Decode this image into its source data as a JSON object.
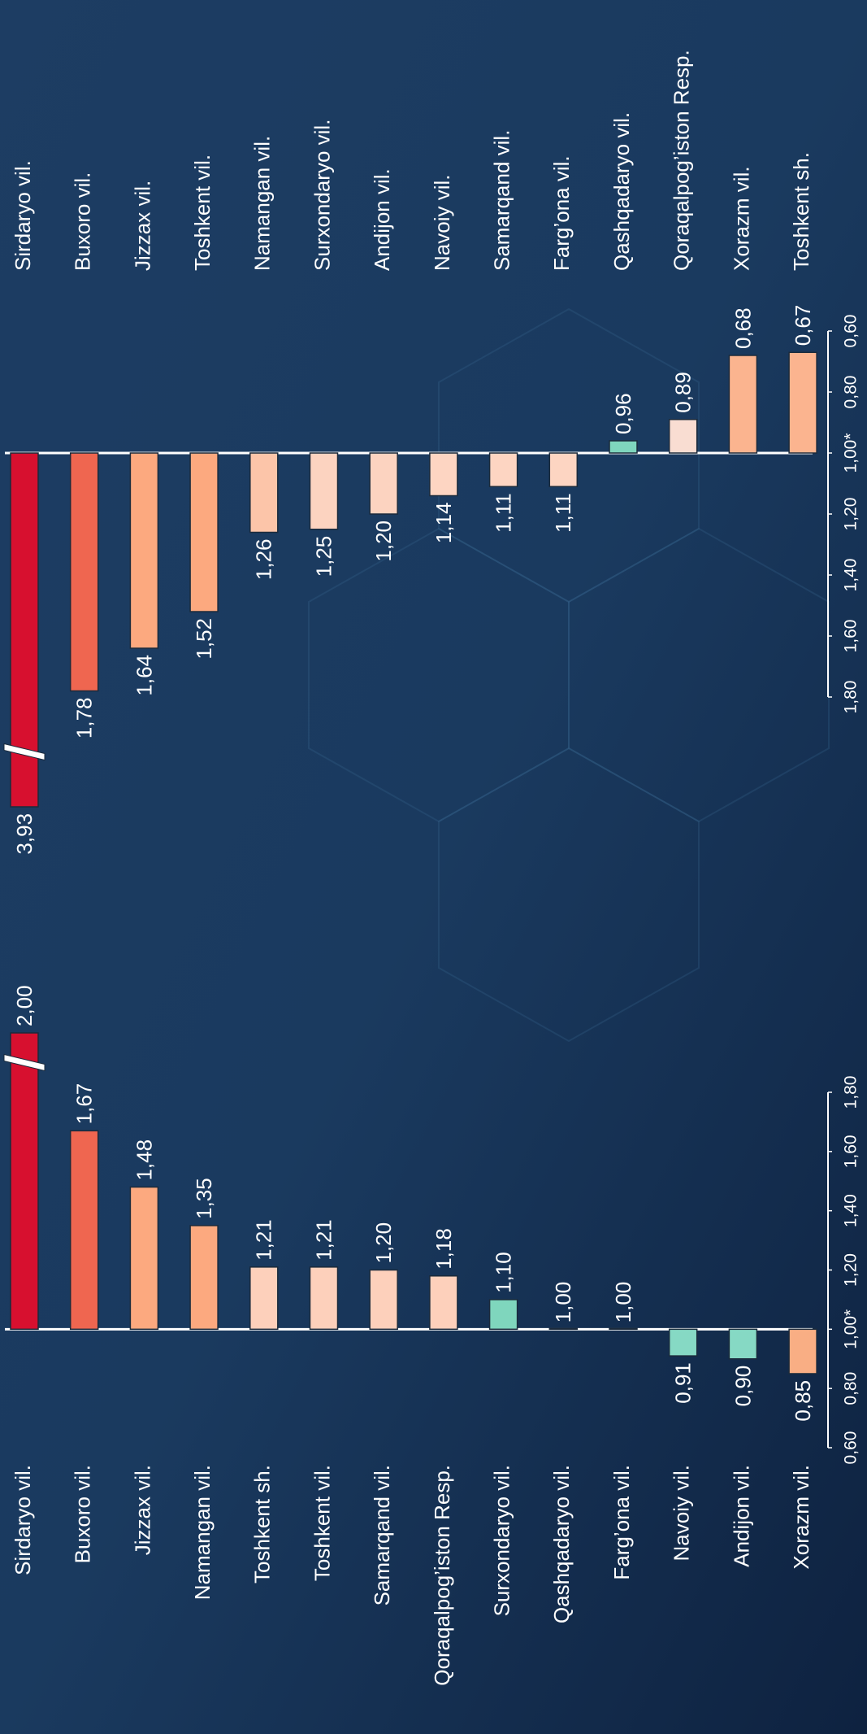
{
  "chart_data": [
    {
      "type": "bar",
      "categories": [
        "Sirdaryo vil.",
        "Buxoro vil.",
        "Jizzax vil.",
        "Namangan vil.",
        "Toshkent sh.",
        "Toshkent vil.",
        "Samarqand vil.",
        "Qoraqalpog’iston Resp.",
        "Surxondaryo vil.",
        "Qashqadaryo vil.",
        "Farg’ona vil.",
        "Navoiy vil.",
        "Andijon vil.",
        "Xorazm vil."
      ],
      "values": [
        2.0,
        1.67,
        1.48,
        1.35,
        1.21,
        1.21,
        1.2,
        1.18,
        1.1,
        1.0,
        1.0,
        0.91,
        0.9,
        0.85
      ],
      "value_labels": [
        "2,00",
        "1,67",
        "1,48",
        "1,35",
        "1,21",
        "1,21",
        "1,20",
        "1,18",
        "1,10",
        "1,00",
        "1,00",
        "0,91",
        "0,90",
        "0,85"
      ],
      "colors": [
        "#d7102f",
        "#ef6650",
        "#fca97f",
        "#fca97f",
        "#fdd0bb",
        "#fdd0bb",
        "#fdd0bb",
        "#fdd0bb",
        "#7fd6bd",
        "#17875a",
        "#17875a",
        "#86d9c4",
        "#86d9c4",
        "#f9ae84"
      ],
      "baseline": 1,
      "ylim": [
        0.6,
        1.8
      ],
      "yticks": [
        {
          "value": 0.6,
          "label": "0,60"
        },
        {
          "value": 0.8,
          "label": "0,80"
        },
        {
          "value": 1.0,
          "label": "1,00*"
        },
        {
          "value": 1.2,
          "label": "1,20"
        },
        {
          "value": 1.4,
          "label": "1,40"
        },
        {
          "value": 1.6,
          "label": "1,60"
        },
        {
          "value": 1.8,
          "label": "1,80"
        }
      ]
    },
    {
      "type": "bar",
      "categories": [
        "Sirdaryo vil.",
        "Buxoro vil.",
        "Jizzax vil.",
        "Toshkent vil.",
        "Namangan vil.",
        "Surxondaryo vil.",
        "Andijon vil.",
        "Navoiy vil.",
        "Samarqand vil.",
        "Farg’ona vil.",
        "Qashqadaryo vil.",
        "Qoraqalpog’iston Resp.",
        "Xorazm vil.",
        "Toshkent sh."
      ],
      "values": [
        3.93,
        1.78,
        1.64,
        1.52,
        1.26,
        1.25,
        1.2,
        1.14,
        1.11,
        1.11,
        0.96,
        0.89,
        0.68,
        0.67
      ],
      "value_labels": [
        "3,93",
        "1,78",
        "1,64",
        "1,52",
        "1,26",
        "1,25",
        "1,20",
        "1,14",
        "1,11",
        "1,11",
        "0,96",
        "0,89",
        "0,68",
        "0,67"
      ],
      "colors": [
        "#d7102f",
        "#ef6650",
        "#fca97f",
        "#fca97f",
        "#fcc5a9",
        "#fcd3c0",
        "#fcd3c0",
        "#fdd5c2",
        "#fdd5c2",
        "#fdd5c2",
        "#7fd6bd",
        "#f9ddd2",
        "#fbb48f",
        "#fbb48f"
      ],
      "baseline": 1,
      "ylim": [
        0.6,
        1.8
      ],
      "yticks": [
        {
          "value": 0.6,
          "label": "0,60"
        },
        {
          "value": 0.8,
          "label": "0,80"
        },
        {
          "value": 1.0,
          "label": "1,00*"
        },
        {
          "value": 1.2,
          "label": "1,20"
        },
        {
          "value": 1.4,
          "label": "1,40"
        },
        {
          "value": 1.6,
          "label": "1,60"
        },
        {
          "value": 1.8,
          "label": "1,80"
        }
      ]
    }
  ]
}
